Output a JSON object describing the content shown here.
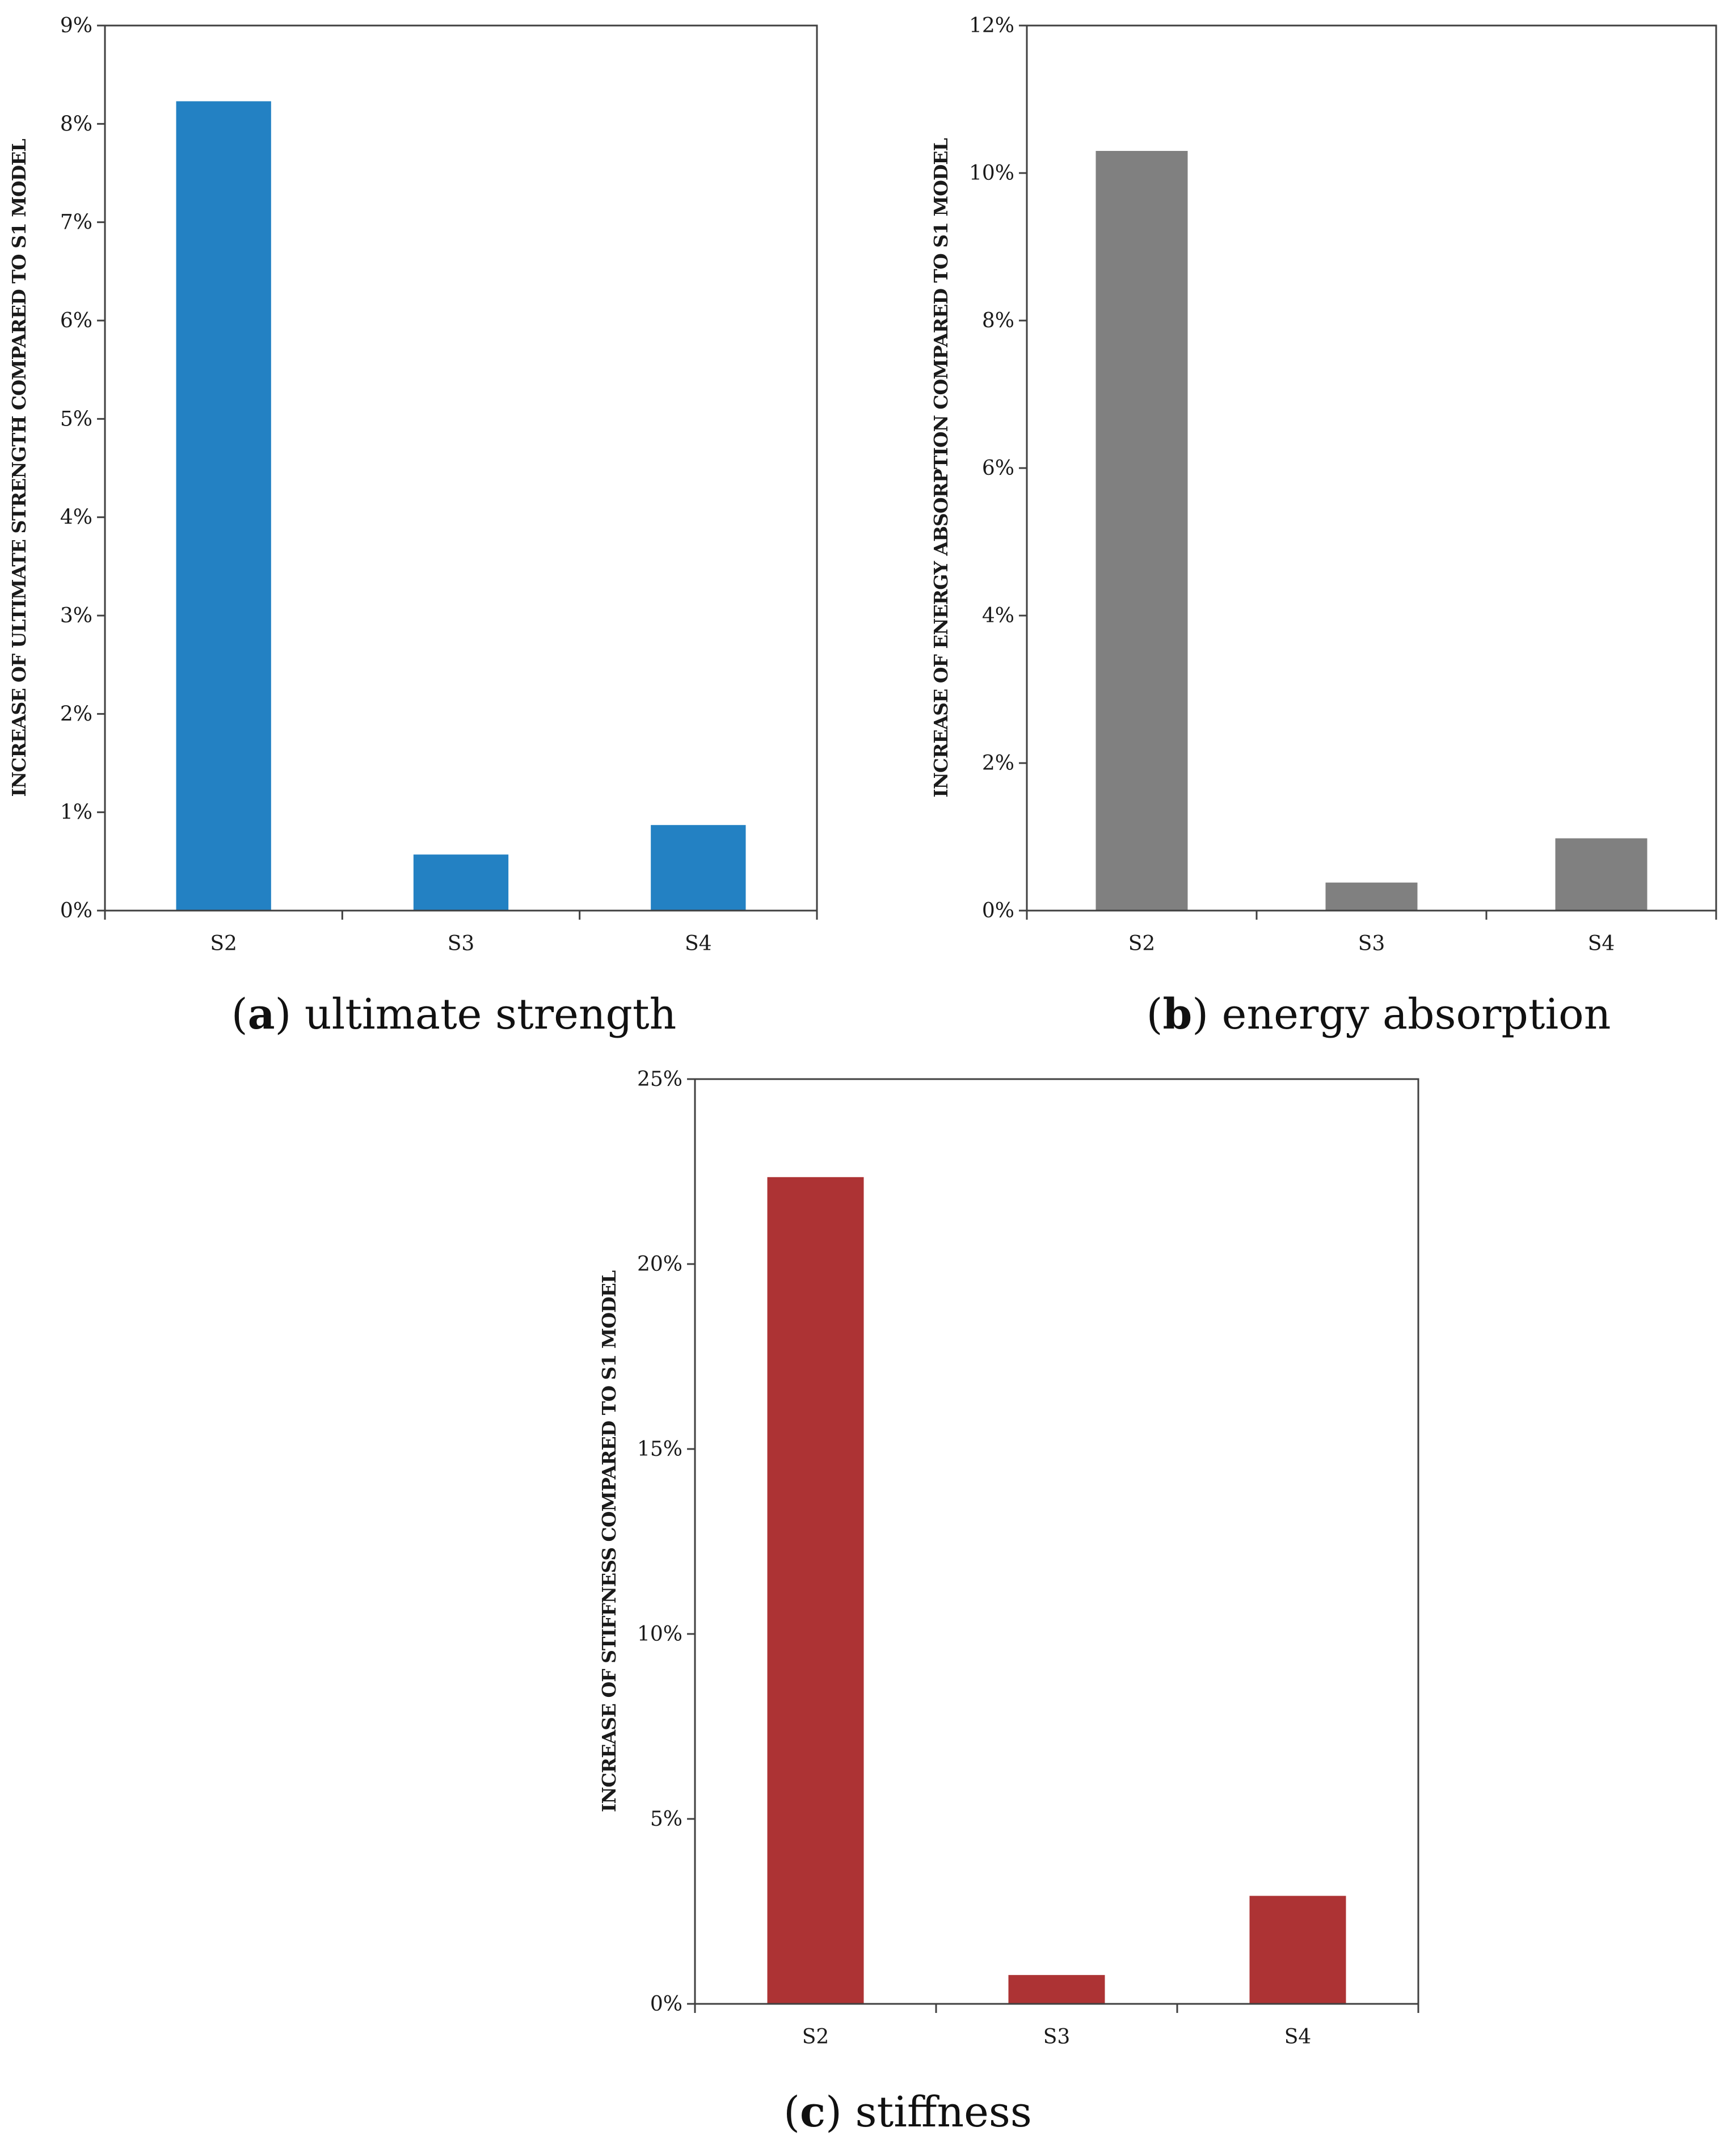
{
  "chart_data": [
    {
      "id": "a",
      "type": "bar",
      "categories": [
        "S2",
        "S3",
        "S4"
      ],
      "values": [
        8.23,
        0.57,
        0.87
      ],
      "ylim": [
        0,
        9
      ],
      "yticks": [
        "0%",
        "1%",
        "2%",
        "3%",
        "4%",
        "5%",
        "6%",
        "7%",
        "8%",
        "9%"
      ],
      "ylabel": "INCREASE OF ULTIMATE STRENGTH COMPARED TO S1 MODEL",
      "xlabel": "",
      "color": "#2381c3",
      "caption_letter": "a",
      "caption_text": "ultimate strength"
    },
    {
      "id": "b",
      "type": "bar",
      "categories": [
        "S2",
        "S3",
        "S4"
      ],
      "values": [
        10.3,
        0.38,
        0.98
      ],
      "ylim": [
        0,
        12
      ],
      "yticks": [
        "0%",
        "2%",
        "4%",
        "6%",
        "8%",
        "10%",
        "12%"
      ],
      "ylabel": "INCREASE OF ENERGY ABSORPTION COMPARED TO S1 MODEL",
      "xlabel": "",
      "color": "#808080",
      "caption_letter": "b",
      "caption_text": "energy absorption"
    },
    {
      "id": "c",
      "type": "bar",
      "categories": [
        "S2",
        "S3",
        "S4"
      ],
      "values": [
        22.35,
        0.78,
        2.92
      ],
      "ylim": [
        0,
        25
      ],
      "yticks": [
        "0%",
        "5%",
        "10%",
        "15%",
        "20%",
        "25%"
      ],
      "ylabel": "INCREASE OF STIFFNESS COMPARED TO S1 MODEL",
      "xlabel": "",
      "color": "#ad3334",
      "caption_letter": "c",
      "caption_text": "stiffness"
    }
  ]
}
